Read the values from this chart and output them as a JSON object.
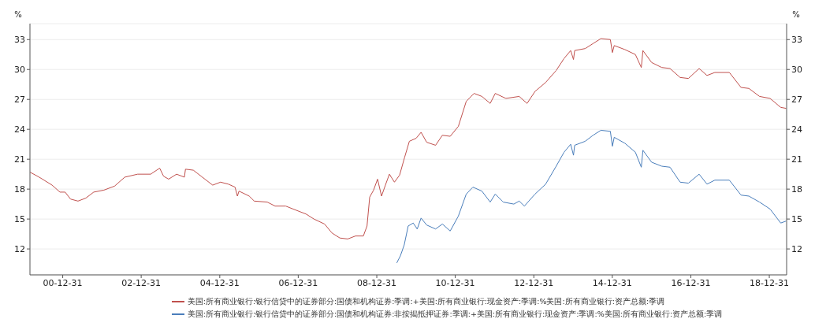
{
  "chart_data": {
    "type": "line",
    "ylabel": "%",
    "y2label": "%",
    "xlim": [
      "2000-03-01",
      "2019-06-10"
    ],
    "xticks": [
      {
        "value": "2000-12-31",
        "label": "00-12-31"
      },
      {
        "value": "2002-12-31",
        "label": "02-12-31"
      },
      {
        "value": "2004-12-31",
        "label": "04-12-31"
      },
      {
        "value": "2006-12-31",
        "label": "06-12-31"
      },
      {
        "value": "2008-12-31",
        "label": "08-12-31"
      },
      {
        "value": "2010-12-31",
        "label": "10-12-31"
      },
      {
        "value": "2012-12-31",
        "label": "12-12-31"
      },
      {
        "value": "2014-12-31",
        "label": "14-12-31"
      },
      {
        "value": "2016-12-31",
        "label": "16-12-31"
      },
      {
        "value": "2018-12-31",
        "label": "18-12-31"
      }
    ],
    "ylim": [
      9.4,
      34.6
    ],
    "yticks": [
      12,
      15,
      18,
      21,
      24,
      27,
      30,
      33
    ],
    "y2lim": [
      9.4,
      34.6
    ],
    "y2ticks": [
      12,
      15,
      18,
      21,
      24,
      27,
      30,
      33
    ],
    "grid": "y",
    "legend": "bottom",
    "marker": "none",
    "line_style": "solid",
    "series": [
      {
        "name": "美国:所有商业银行:银行信贷中的证券部分:国债和机构证券:非按揭抵押证券:季调:+美国:所有商业银行:现金资产:季调:%美国:所有商业银行:资产总额:季调",
        "color": "#4a7ebb",
        "x": [
          "2009-07-05",
          "2009-08-07",
          "2009-09-12",
          "2009-10-19",
          "2009-12-05",
          "2010-01-11",
          "2010-02-16",
          "2010-04-09",
          "2010-07-01",
          "2010-09-02",
          "2010-11-14",
          "2011-01-29",
          "2011-04-12",
          "2011-06-13",
          "2011-09-05",
          "2011-11-21",
          "2012-01-07",
          "2012-03-21",
          "2012-06-28",
          "2012-08-17",
          "2012-10-04",
          "2013-01-11",
          "2013-04-20",
          "2013-07-27",
          "2013-10-08",
          "2013-12-09",
          "2014-01-04",
          "2014-01-15",
          "2014-04-23",
          "2014-07-05",
          "2014-09-16",
          "2014-12-13",
          "2015-01-01",
          "2015-01-18",
          "2015-04-27",
          "2015-08-03",
          "2015-09-27",
          "2015-10-12",
          "2016-01-01",
          "2016-04-04",
          "2016-06-20",
          "2016-09-22",
          "2016-12-08",
          "2017-03-18",
          "2017-05-30",
          "2017-08-11",
          "2017-12-24",
          "2018-04-12",
          "2018-06-24",
          "2018-10-01",
          "2019-01-07",
          "2019-04-16",
          "2019-06-06"
        ],
        "values": [
          10.6,
          11.3,
          12.4,
          14.3,
          14.6,
          14.0,
          15.1,
          14.4,
          14.0,
          14.5,
          13.8,
          15.3,
          17.5,
          18.2,
          17.8,
          16.7,
          17.5,
          16.7,
          16.5,
          16.8,
          16.3,
          17.5,
          18.5,
          20.3,
          21.7,
          22.5,
          21.4,
          22.4,
          22.8,
          23.4,
          23.9,
          23.8,
          22.3,
          23.2,
          22.6,
          21.7,
          20.2,
          21.9,
          20.7,
          20.3,
          20.2,
          18.7,
          18.6,
          19.5,
          18.5,
          18.9,
          18.9,
          17.4,
          17.3,
          16.7,
          16.0,
          14.6,
          14.8
        ]
      },
      {
        "name": "美国:所有商业银行:银行信贷中的证券部分:国债和机构证券:季调:+美国:所有商业银行:现金资产:季调:%美国:所有商业银行:资产总额:季调",
        "color": "#c0504d",
        "x": [
          "2000-03-02",
          "2000-05-26",
          "2000-09-23",
          "2000-12-05",
          "2001-01-22",
          "2001-03-14",
          "2001-05-22",
          "2001-08-03",
          "2001-10-15",
          "2002-01-18",
          "2002-04-27",
          "2002-07-31",
          "2002-11-28",
          "2003-03-29",
          "2003-06-21",
          "2003-07-27",
          "2003-09-12",
          "2003-11-25",
          "2004-02-06",
          "2004-02-16",
          "2004-04-29",
          "2004-07-22",
          "2004-10-26",
          "2005-01-07",
          "2005-03-21",
          "2005-05-22",
          "2005-06-13",
          "2005-06-28",
          "2005-10-01",
          "2005-11-17",
          "2006-03-18",
          "2006-05-30",
          "2006-09-05",
          "2006-11-14",
          "2007-03-14",
          "2007-05-26",
          "2007-09-02",
          "2007-11-10",
          "2008-01-22",
          "2008-04-04",
          "2008-06-16",
          "2008-08-28",
          "2008-10-01",
          "2008-10-26",
          "2008-12-01",
          "2009-01-07",
          "2009-02-13",
          "2009-03-21",
          "2009-04-27",
          "2009-06-13",
          "2009-07-31",
          "2009-09-16",
          "2009-10-30",
          "2010-01-01",
          "2010-02-16",
          "2010-04-09",
          "2010-07-01",
          "2010-09-02",
          "2010-11-14",
          "2011-01-29",
          "2011-04-12",
          "2011-06-24",
          "2011-09-05",
          "2011-11-21",
          "2012-01-07",
          "2012-04-15",
          "2012-08-17",
          "2012-10-29",
          "2013-01-11",
          "2013-04-20",
          "2013-07-27",
          "2013-10-08",
          "2013-12-09",
          "2014-01-04",
          "2014-01-15",
          "2014-04-23",
          "2014-07-05",
          "2014-09-16",
          "2014-12-13",
          "2015-01-01",
          "2015-01-18",
          "2015-04-27",
          "2015-08-03",
          "2015-09-27",
          "2015-10-12",
          "2016-01-01",
          "2016-04-04",
          "2016-06-20",
          "2016-09-22",
          "2016-12-08",
          "2017-03-18",
          "2017-05-30",
          "2017-08-11",
          "2017-12-24",
          "2018-04-12",
          "2018-06-24",
          "2018-10-01",
          "2019-01-07",
          "2019-04-16",
          "2019-06-06"
        ],
        "values": [
          19.7,
          19.2,
          18.4,
          17.7,
          17.7,
          17.0,
          16.8,
          17.1,
          17.7,
          17.9,
          18.3,
          19.2,
          19.5,
          19.5,
          20.1,
          19.3,
          19.0,
          19.5,
          19.2,
          20.0,
          19.9,
          19.2,
          18.4,
          18.7,
          18.5,
          18.2,
          17.3,
          17.8,
          17.3,
          16.8,
          16.7,
          16.3,
          16.3,
          16.0,
          15.5,
          15.0,
          14.5,
          13.6,
          13.1,
          13.0,
          13.3,
          13.3,
          14.3,
          17.2,
          17.9,
          19.0,
          17.3,
          18.4,
          19.5,
          18.7,
          19.4,
          21.2,
          22.8,
          23.1,
          23.7,
          22.7,
          22.4,
          23.4,
          23.3,
          24.3,
          26.8,
          27.6,
          27.3,
          26.6,
          27.6,
          27.1,
          27.3,
          26.6,
          27.8,
          28.7,
          29.9,
          31.1,
          31.9,
          31.0,
          31.9,
          32.1,
          32.6,
          33.1,
          33.0,
          31.7,
          32.4,
          32.0,
          31.5,
          30.2,
          31.9,
          30.7,
          30.2,
          30.1,
          29.2,
          29.1,
          30.1,
          29.4,
          29.7,
          29.7,
          28.2,
          28.1,
          27.3,
          27.1,
          26.2,
          26.1
        ]
      }
    ]
  }
}
